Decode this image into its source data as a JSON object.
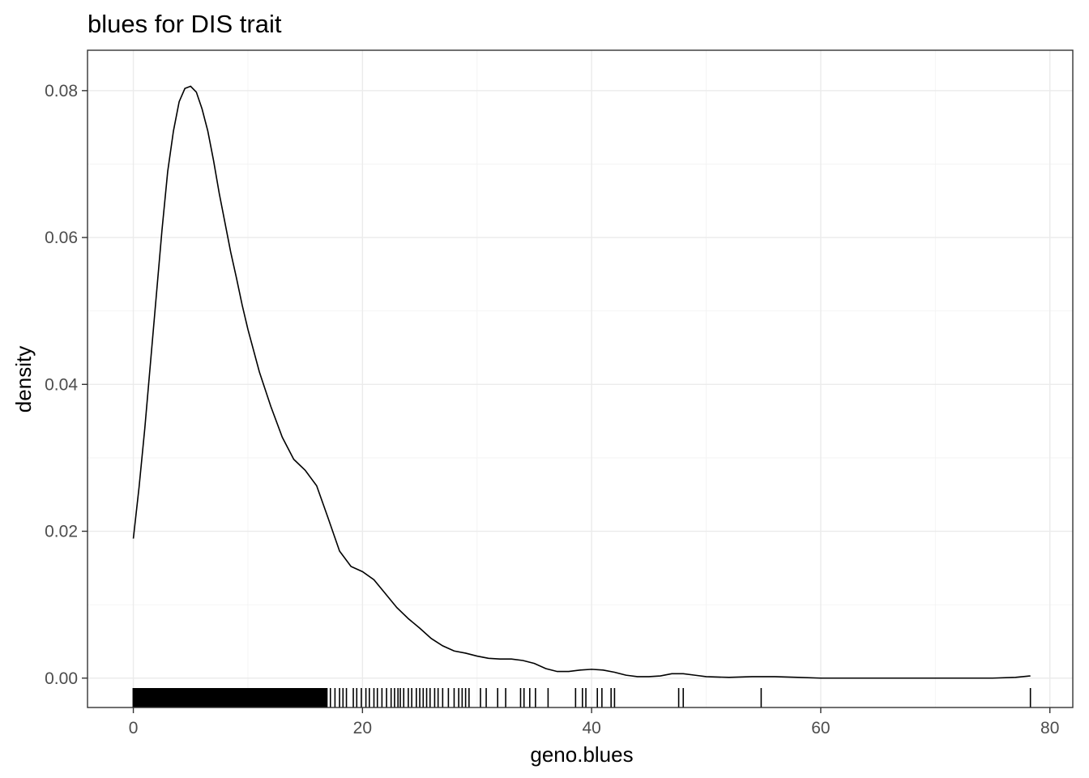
{
  "chart_data": {
    "type": "density",
    "title": "blues for DIS trait",
    "xlabel": "geno.blues",
    "ylabel": "density",
    "xlim": [
      -4,
      82
    ],
    "ylim": [
      -0.004,
      0.0855
    ],
    "x_ticks": [
      0,
      20,
      40,
      60,
      80
    ],
    "x_tick_labels": [
      "0",
      "20",
      "40",
      "60",
      "80"
    ],
    "y_ticks": [
      0.0,
      0.02,
      0.04,
      0.06,
      0.08
    ],
    "y_tick_labels": [
      "0.00",
      "0.02",
      "0.04",
      "0.06",
      "0.08"
    ],
    "grid": true,
    "legend": "none",
    "line_color": "#000000",
    "density_curve": [
      [
        0,
        0.019
      ],
      [
        0.5,
        0.026
      ],
      [
        1,
        0.034
      ],
      [
        1.5,
        0.043
      ],
      [
        2,
        0.052
      ],
      [
        2.5,
        0.061
      ],
      [
        3,
        0.069
      ],
      [
        3.5,
        0.0745
      ],
      [
        4,
        0.0785
      ],
      [
        4.5,
        0.0803
      ],
      [
        5,
        0.0806
      ],
      [
        5.5,
        0.0798
      ],
      [
        6,
        0.0775
      ],
      [
        6.5,
        0.0745
      ],
      [
        7,
        0.0705
      ],
      [
        7.5,
        0.066
      ],
      [
        8,
        0.062
      ],
      [
        8.5,
        0.058
      ],
      [
        9,
        0.0545
      ],
      [
        9.5,
        0.0508
      ],
      [
        10,
        0.0475
      ],
      [
        11,
        0.0417
      ],
      [
        12,
        0.037
      ],
      [
        13,
        0.0328
      ],
      [
        14,
        0.0298
      ],
      [
        15,
        0.0283
      ],
      [
        16,
        0.0262
      ],
      [
        17,
        0.0218
      ],
      [
        18,
        0.0173
      ],
      [
        19,
        0.0152
      ],
      [
        20,
        0.0145
      ],
      [
        21,
        0.0134
      ],
      [
        22,
        0.0115
      ],
      [
        23,
        0.0096
      ],
      [
        24,
        0.0081
      ],
      [
        25,
        0.0068
      ],
      [
        26,
        0.0054
      ],
      [
        27,
        0.0044
      ],
      [
        28,
        0.0037
      ],
      [
        29,
        0.0034
      ],
      [
        30,
        0.003
      ],
      [
        31,
        0.0027
      ],
      [
        32,
        0.0026
      ],
      [
        33,
        0.0026
      ],
      [
        34,
        0.0024
      ],
      [
        35,
        0.002
      ],
      [
        36,
        0.0013
      ],
      [
        37,
        0.0009
      ],
      [
        38,
        0.0009
      ],
      [
        39,
        0.0011
      ],
      [
        40,
        0.0012
      ],
      [
        41,
        0.0011
      ],
      [
        42,
        0.0008
      ],
      [
        43,
        0.0004
      ],
      [
        44,
        0.0002
      ],
      [
        45,
        0.0002
      ],
      [
        46,
        0.0003
      ],
      [
        47,
        0.0006
      ],
      [
        48,
        0.0006
      ],
      [
        49,
        0.0004
      ],
      [
        50,
        0.0002
      ],
      [
        52,
        0.0001
      ],
      [
        54,
        0.0002
      ],
      [
        56,
        0.0002
      ],
      [
        58,
        0.0001
      ],
      [
        60,
        0.0
      ],
      [
        65,
        0.0
      ],
      [
        70,
        0.0
      ],
      [
        75,
        0.0
      ],
      [
        77,
        0.0001
      ],
      [
        78.3,
        0.0003
      ]
    ],
    "rug_values": [
      16.9,
      17.2,
      17.6,
      18.0,
      18.3,
      18.6,
      19.2,
      19.5,
      19.9,
      20.3,
      20.6,
      21.0,
      21.3,
      21.7,
      22.1,
      22.5,
      22.8,
      23.1,
      23.3,
      23.6,
      24.0,
      24.3,
      24.7,
      25.0,
      25.3,
      25.6,
      25.9,
      26.3,
      26.6,
      27.0,
      27.5,
      28.0,
      28.4,
      28.7,
      29.0,
      29.3,
      30.3,
      30.8,
      31.8,
      32.5,
      33.8,
      34.1,
      34.6,
      35.1,
      36.2,
      38.6,
      39.2,
      39.5,
      40.5,
      40.9,
      41.7,
      42.0,
      47.6,
      48.0,
      54.8,
      78.3
    ],
    "rug_dense_range": [
      0,
      16.8
    ]
  }
}
